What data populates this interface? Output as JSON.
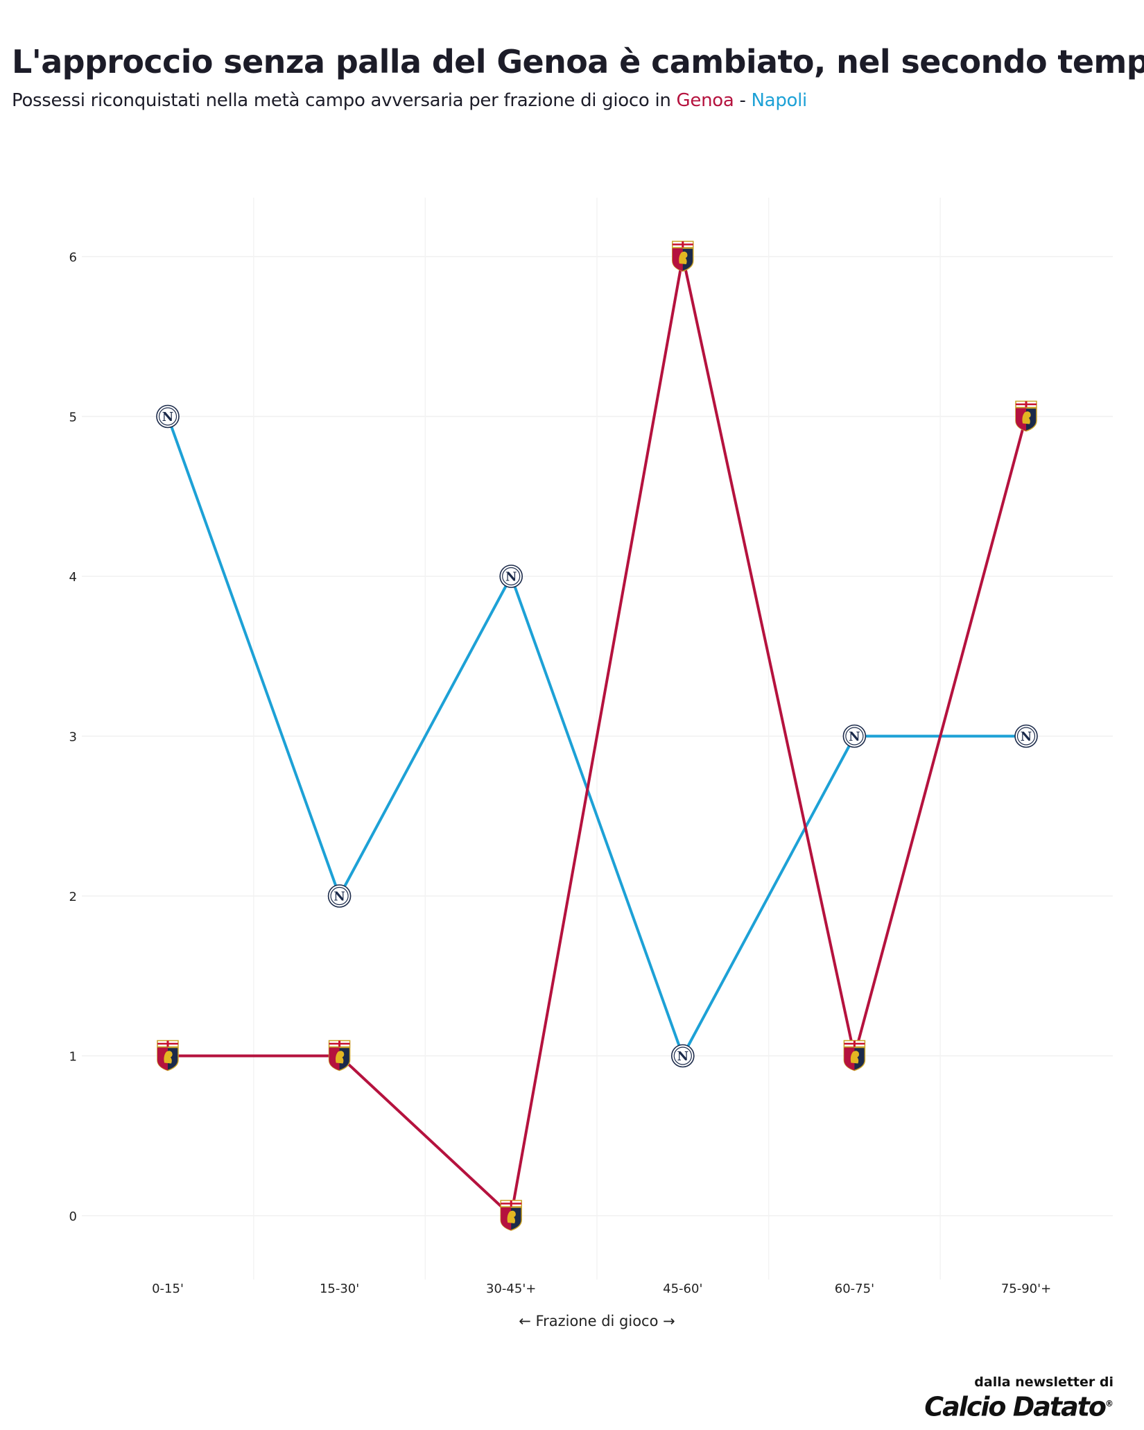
{
  "title": "L'approccio senza palla del Genoa è cambiato, nel secondo tempo",
  "subtitle": {
    "prefix": "Possessi riconquistati nella metà campo avversaria per frazione di gioco in ",
    "team1": "Genoa",
    "separator": " - ",
    "team2": "Napoli"
  },
  "credit": {
    "line1": "dalla newsletter di",
    "brand": "Calcio Datato",
    "mark": "®"
  },
  "colors": {
    "genoa": "#b5123e",
    "napoli": "#1da1d6"
  },
  "chart_data": {
    "type": "line",
    "title": "L'approccio senza palla del Genoa è cambiato, nel secondo tempo",
    "xlabel": "← Frazione di gioco →",
    "ylabel": "",
    "categories": [
      "0-15'",
      "15-30'",
      "30-45'+",
      "45-60'",
      "60-75'",
      "75-90'+"
    ],
    "yticks": [
      0,
      1,
      2,
      3,
      4,
      5,
      6
    ],
    "ylim": [
      -0.35,
      6.35
    ],
    "grid": true,
    "series": [
      {
        "name": "Genoa",
        "color": "#b5123e",
        "marker": "genoa-crest-icon",
        "values": [
          1,
          1,
          0,
          6,
          1,
          5
        ]
      },
      {
        "name": "Napoli",
        "color": "#1da1d6",
        "marker": "napoli-badge-icon",
        "values": [
          5,
          2,
          4,
          1,
          3,
          3
        ]
      }
    ]
  }
}
